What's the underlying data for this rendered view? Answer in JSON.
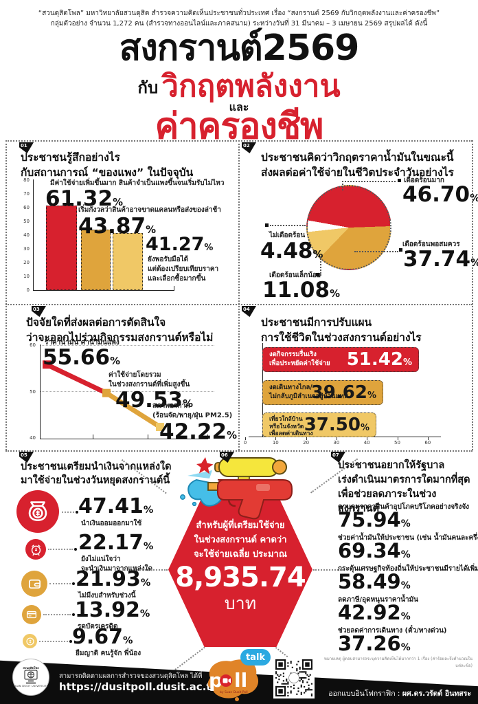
{
  "pct": "%",
  "colors": {
    "red": "#D7212E",
    "gold": "#DFA43C",
    "light_gold": "#F0C866",
    "white": "#FFFFFF",
    "black": "#111111"
  },
  "header": {
    "source_line1": "“สวนดุสิตโพล” มหาวิทยาลัยสวนดุสิต สำรวจความคิดเห็นประชาชนทั่วประเทศ  เรื่อง “สงกรานต์ 2569 กับวิกฤตพลังงานและค่าครองชีพ”",
    "source_line2": "กลุ่มตัวอย่าง จำนวน 1,272 คน  (สำรวจทางออนไลน์และภาคสนาม) ระหว่างวันที่ 31 มีนาคม –  3 เมษายน 2569  สรุปผลได้ ดังนี้",
    "title_line1": "สงกรานต์2569",
    "title_line2_black": "กับ",
    "title_line2_red": "วิกฤตพลังงาน",
    "title_line3": "และ",
    "title_line4": "ค่าครองชีพ"
  },
  "sections": {
    "q1": {
      "number": "01",
      "title1": "ประชาชนรู้สึกอย่างไร",
      "title2": "กับสถานการณ์ “ของแพง” ในปัจจุบัน",
      "items": [
        {
          "value": "61.32",
          "desc1": "มีค่าใช้จ่ายเพิ่มขึ้นมาก สินค้าจำเป็นแพงขึ้นจนเริ่มรับไม่ไหว",
          "desc2": "",
          "desc3": ""
        },
        {
          "value": "43.87",
          "desc1": "เริ่มกังวลว่าสินค้าอาจขาดแคลนหรือส่งของล่าช้า",
          "desc2": "",
          "desc3": ""
        },
        {
          "value": "41.27",
          "desc1": "ยังพอรับมือได้",
          "desc2": "แต่ต้องเปรียบเทียบราคา",
          "desc3": "และเลือกซื้อมากขึ้น"
        }
      ]
    },
    "q2": {
      "number": "02",
      "title1": "ประชาชนคิดว่าวิกฤตราคาน้ำมันในขณะนี้",
      "title2": "ส่งผลต่อค่าใช้จ่ายในชีวิตประจำวันอย่างไร",
      "slices": [
        {
          "label": "เดือดร้อนมาก",
          "value": "46.70"
        },
        {
          "label": "เดือดร้อนพอสมควร",
          "value": "37.74"
        },
        {
          "label": "เดือดร้อนเล็กน้อย",
          "value": "11.08"
        },
        {
          "label": "ไม่เดือดร้อน",
          "value": "4.48"
        }
      ]
    },
    "q3": {
      "number": "03",
      "title1": "ปัจจัยใดที่ส่งผลต่อการตัดสินใจ",
      "title2": "ว่าจะออกไปร่วมกิจกรรมสงกรานต์หรือไม่",
      "points": [
        {
          "value": "55.66",
          "desc1": "ราคาน้ำมัน ค่าน้ำมันแพง",
          "desc2": ""
        },
        {
          "value": "49.53",
          "desc1": "ค่าใช้จ่ายโดยรวม",
          "desc2": "ในช่วงสงกรานต์ที่เพิ่มสูงขึ้น"
        },
        {
          "value": "42.22",
          "desc1": "สภาพอากาศ",
          "desc2": "(ร้อนจัด/พายุ/ฝุ่น PM2.5)"
        }
      ]
    },
    "q4": {
      "number": "04",
      "title1": "ประชาชนมีการปรับแผน",
      "title2": "การใช้ชีวิตในช่วงสงกรานต์อย่างไร",
      "bars": [
        {
          "value": "51.42",
          "desc1": "งดกิจกรรมรื่นเริง",
          "desc2": "เพื่อประหยัดค่าใช้จ่าย",
          "desc3": ""
        },
        {
          "value": "39.62",
          "desc1": "งดเดินทางไกล/",
          "desc2": "ไม่กลับภูมิลำเนาอยู่บ้านแทน",
          "desc3": ""
        },
        {
          "value": "37.50",
          "desc1": "เที่ยวใกล้บ้าน",
          "desc2": "หรือในจังหวัด",
          "desc3": "เพื่อลดค่าเดินทาง"
        }
      ]
    },
    "q5": {
      "number": "05",
      "title1": "ประชาชนเตรียมนำเงินจากแหล่งใด",
      "title2": "มาใช้จ่ายในช่วงวันหยุดสงกรานต์นี้",
      "items": [
        {
          "value": "47.41",
          "desc1": "นำเงินออมออกมาใช้",
          "desc2": ""
        },
        {
          "value": "22.17",
          "desc1": "ยังไม่แน่ใจว่า",
          "desc2": "จะนำเงินมาจากแหล่งใด"
        },
        {
          "value": "21.93",
          "desc1": "ไม่มีงบสำหรับช่วงนี้",
          "desc2": ""
        },
        {
          "value": "13.92",
          "desc1": "รูดบัตรเครดิต",
          "desc2": ""
        },
        {
          "value": "9.67",
          "desc1": "ยืมญาติ คนรู้จัก พี่น้อง",
          "desc2": ""
        }
      ]
    },
    "hex": {
      "number": "06",
      "line1": "สำหรับผู้ที่เตรียมใช้จ่าย",
      "line2": "ในช่วงสงกรานต์ คาดว่า",
      "line3": "จะใช้จ่ายเฉลี่ย ประมาณ",
      "amount": "8,935.74",
      "unit": "บาท"
    },
    "q7": {
      "number": "07",
      "title1": "ประชาชนอยากให้รัฐบาล",
      "title2": "เร่งดำเนินมาตรการใดมากที่สุด",
      "title3": "เพื่อช่วยลดภาระในช่วงสงกรานต์",
      "items": [
        {
          "value": "75.94",
          "desc": "ควบคุมราคาสินค้าอุปโภคบริโภคอย่างจริงจัง"
        },
        {
          "value": "69.34",
          "desc": "ช่วยค่าน้ำมันให้ประชาชน (เช่น น้ำมันคนละครึ่ง)"
        },
        {
          "value": "58.49",
          "desc": "กระตุ้นเศรษฐกิจท้องถิ่นให้ประชาชนมีรายได้เพิ่ม"
        },
        {
          "value": "42.92",
          "desc": "ลดภาษี/อุดหนุนราคาน้ำมัน"
        },
        {
          "value": "37.26",
          "desc": "ช่วยลดค่าการเดินทาง (ตั๋ว/ทางด่วน)"
        }
      ]
    }
  },
  "note": "หมายเหตุ  ผู้ตอบสามารถระบุความคิดเห็นได้มากกว่า 1 เรื่อง (ค่าร้อยละจึงคำนวณในแต่ละข้อ)",
  "footer": {
    "follow_label": "สามารถติดตามผลการสำรวจของสวนดุสิตโพล ได้ที่",
    "url": "https://dusitpoll.dusit.ac.th",
    "credit_label": "ออกแบบอินโฟกราฟิก :",
    "credit_name": "ผศ.ดร.วรัตต์ อินทสระ",
    "poll_logo_p": "p",
    "poll_logo_ll": "ll",
    "poll_logo_sub": "by Suan Dusit Poll",
    "talk_label": "talk",
    "org_logo_top": "สวนดุสิตโพล",
    "org_logo_bottom": "SUAN DUSIT UNIVERSITY"
  },
  "chart_data": [
    {
      "type": "bar",
      "title": "ประชาชนรู้สึกอย่างไรกับสถานการณ์ “ของแพง” ในปัจจุบัน",
      "categories": [
        "มีค่าใช้จ่ายเพิ่มขึ้นมาก สินค้าจำเป็นแพงขึ้นจนเริ่มรับไม่ไหว",
        "เริ่มกังวลว่าสินค้าอาจขาดแคลนหรือส่งของล่าช้า",
        "ยังพอรับมือได้ แต่ต้องเปรียบเทียบราคาและเลือกซื้อมากขึ้น"
      ],
      "values": [
        61.32,
        43.87,
        41.27
      ],
      "colors": [
        "red",
        "gold",
        "light_gold"
      ],
      "ylim": [
        0,
        80
      ],
      "yticks": [
        0,
        10,
        20,
        30,
        40,
        50,
        60,
        70,
        80
      ],
      "unit": "%",
      "grid": false,
      "legend": "none"
    },
    {
      "type": "pie",
      "title": "ประชาชนคิดว่าวิกฤตราคาน้ำมันในขณะนี้ส่งผลต่อค่าใช้จ่ายในชีวิตประจำวันอย่างไร",
      "labels": [
        "เดือดร้อนมาก",
        "เดือดร้อนพอสมควร",
        "เดือดร้อนเล็กน้อย",
        "ไม่เดือดร้อน"
      ],
      "values": [
        46.7,
        37.74,
        11.08,
        4.48
      ],
      "colors": [
        "red",
        "gold",
        "light_gold",
        "white"
      ],
      "start_angle_deg": 280,
      "unit": "%"
    },
    {
      "type": "line",
      "title": "ปัจจัยใดที่ส่งผลต่อการตัดสินใจว่าจะออกไปร่วมกิจกรรมสงกรานต์หรือไม่",
      "labels": [
        "ราคาน้ำมัน ค่าน้ำมันแพง",
        "ค่าใช้จ่ายโดยรวมในช่วงสงกรานต์ที่เพิ่มสูงขึ้น",
        "สภาพอากาศ (ร้อนจัด/พายุ/ฝุ่น PM2.5)"
      ],
      "values": [
        55.66,
        49.53,
        42.22
      ],
      "point_colors": [
        "red",
        "gold",
        "light_gold"
      ],
      "segment_colors": [
        "red",
        "gold"
      ],
      "ylim": [
        40,
        60
      ],
      "yticks": [
        40,
        50,
        60
      ],
      "unit": "%",
      "grid": true
    },
    {
      "type": "bar",
      "orientation": "horizontal",
      "title": "ประชาชนมีการปรับแผนการใช้ชีวิตในช่วงสงกรานต์อย่างไร",
      "categories": [
        "งดกิจกรรมรื่นเริงเพื่อประหยัดค่าใช้จ่าย",
        "งดเดินทางไกล/ไม่กลับภูมิลำเนาอยู่บ้านแทน",
        "เที่ยวใกล้บ้านหรือในจังหวัดเพื่อลดค่าเดินทาง"
      ],
      "values": [
        51.42,
        39.62,
        37.5
      ],
      "colors": [
        "red",
        "gold",
        "light_gold"
      ],
      "xlim": [
        0,
        60
      ],
      "xticks": [
        0,
        10,
        20,
        30,
        40,
        50,
        60
      ],
      "unit": "%"
    },
    {
      "type": "bar",
      "title": "ประชาชนเตรียมนำเงินจากแหล่งใดมาใช้จ่ายในช่วงวันหยุดสงกรานต์นี้",
      "categories": [
        "นำเงินออมออกมาใช้",
        "ยังไม่แน่ใจว่าจะนำเงินมาจากแหล่งใด",
        "ไม่มีงบสำหรับช่วงนี้",
        "รูดบัตรเครดิต",
        "ยืมญาติ คนรู้จัก พี่น้อง"
      ],
      "values": [
        47.41,
        22.17,
        21.93,
        13.92,
        9.67
      ],
      "unit": "%",
      "icons": [
        "money-bag",
        "alarm-clock",
        "wallet",
        "credit-card",
        "coin"
      ]
    },
    {
      "type": "table",
      "title": "สำหรับผู้ที่เตรียมใช้จ่ายในช่วงสงกรานต์ คาดว่าจะใช้จ่ายเฉลี่ย ประมาณ",
      "values": [
        8935.74
      ],
      "unit": "บาท"
    },
    {
      "type": "bar",
      "title": "ประชาชนอยากให้รัฐบาลเร่งดำเนินมาตรการใดมากที่สุดเพื่อช่วยลดภาระในช่วงสงกรานต์",
      "categories": [
        "ควบคุมราคาสินค้าอุปโภคบริโภคอย่างจริงจัง",
        "ช่วยค่าน้ำมันให้ประชาชน (เช่น น้ำมันคนละครึ่ง)",
        "กระตุ้นเศรษฐกิจท้องถิ่นให้ประชาชนมีรายได้เพิ่ม",
        "ลดภาษี/อุดหนุนราคาน้ำมัน",
        "ช่วยลดค่าการเดินทาง (ตั๋ว/ทางด่วน)"
      ],
      "values": [
        75.94,
        69.34,
        58.49,
        42.92,
        37.26
      ],
      "unit": "%"
    }
  ]
}
